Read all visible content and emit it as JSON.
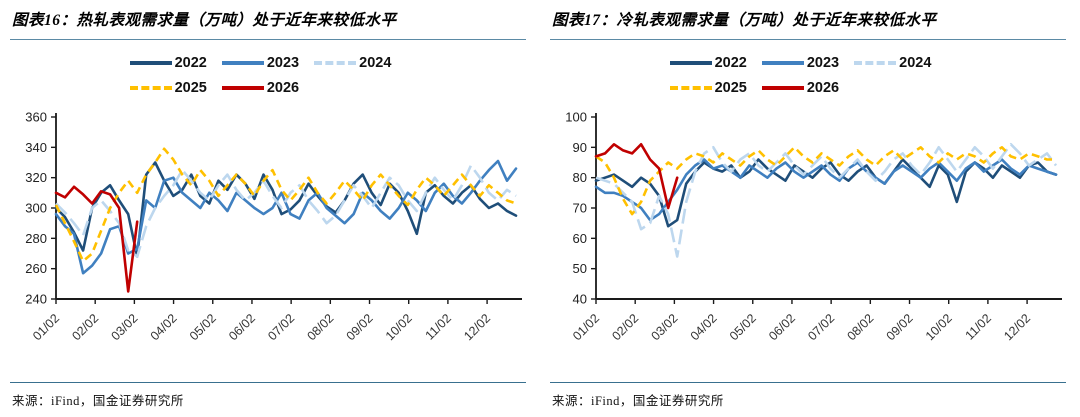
{
  "colors": {
    "title_rule": "#5b8aa5",
    "source_rule": "#39708f",
    "axis": "#1a1a1a",
    "series_2022": "#1f4e79",
    "series_2023": "#4080c0",
    "series_2024": "#bdd7ee",
    "series_2025": "#ffc000",
    "series_2026": "#c00000"
  },
  "panels": [
    {
      "title": "图表16：热轧表观需求量（万吨）处于近年来较低水平",
      "source": "来源：iFind，国金证券研究所"
    },
    {
      "title": "图表17：冷轧表观需求量（万吨）处于近年来较低水平",
      "source": "来源：iFind，国金证券研究所"
    }
  ],
  "chart_data": [
    {
      "type": "line",
      "title": "热轧表观需求量（万吨）",
      "ylim": [
        240,
        360
      ],
      "ytick_step": 20,
      "n_points": 52,
      "grid": false,
      "legend_position": "top",
      "x_tick_labels": [
        "01/02",
        "02/02",
        "03/02",
        "04/02",
        "05/02",
        "06/02",
        "07/02",
        "08/02",
        "09/02",
        "10/02",
        "11/02",
        "12/02"
      ],
      "series": [
        {
          "name": "2022",
          "color": "#1f4e79",
          "dash": "none",
          "values": [
            300,
            294,
            284,
            272,
            300,
            310,
            315,
            305,
            296,
            268,
            322,
            330,
            318,
            308,
            312,
            322,
            308,
            303,
            318,
            312,
            322,
            316,
            306,
            322,
            312,
            296,
            299,
            305,
            316,
            308,
            301,
            297,
            305,
            316,
            322,
            310,
            302,
            316,
            310,
            298,
            283,
            310,
            315,
            308,
            303,
            310,
            315,
            306,
            300,
            303,
            298,
            295
          ]
        },
        {
          "name": "2023",
          "color": "#4080c0",
          "dash": "none",
          "values": [
            296,
            288,
            283,
            257,
            262,
            270,
            286,
            288,
            270,
            273,
            305,
            300,
            318,
            320,
            310,
            305,
            300,
            310,
            305,
            298,
            310,
            305,
            300,
            296,
            300,
            310,
            296,
            293,
            305,
            310,
            300,
            295,
            290,
            296,
            310,
            305,
            298,
            293,
            300,
            310,
            305,
            298,
            310,
            316,
            308,
            303,
            310,
            318,
            325,
            331,
            318,
            326
          ]
        },
        {
          "name": "2024",
          "color": "#bdd7ee",
          "dash": "long",
          "values": [
            303,
            297,
            290,
            282,
            300,
            305,
            298,
            290,
            272,
            268,
            288,
            300,
            308,
            315,
            325,
            318,
            310,
            305,
            315,
            322,
            312,
            305,
            310,
            318,
            308,
            300,
            310,
            315,
            305,
            298,
            290,
            295,
            305,
            315,
            308,
            300,
            310,
            320,
            315,
            305,
            298,
            310,
            320,
            312,
            305,
            315,
            328,
            320,
            310,
            305,
            312,
            308
          ]
        },
        {
          "name": "2025",
          "color": "#ffc000",
          "dash": "dash",
          "values": [
            302,
            290,
            278,
            265,
            270,
            285,
            300,
            310,
            318,
            310,
            322,
            330,
            339,
            332,
            322,
            315,
            325,
            318,
            308,
            315,
            322,
            316,
            308,
            318,
            325,
            312,
            305,
            312,
            320,
            310,
            303,
            310,
            318,
            312,
            305,
            315,
            322,
            315,
            308,
            302,
            312,
            320,
            315,
            308,
            315,
            322,
            315,
            308,
            315,
            310,
            305,
            303
          ]
        },
        {
          "name": "2026",
          "color": "#c00000",
          "dash": "none",
          "values": [
            310,
            307,
            314,
            309,
            303,
            311,
            309,
            300,
            245,
            291
          ]
        }
      ]
    },
    {
      "type": "line",
      "title": "冷轧表观需求量（万吨）",
      "ylim": [
        40,
        100
      ],
      "ytick_step": 10,
      "n_points": 52,
      "grid": false,
      "legend_position": "top",
      "x_tick_labels": [
        "01/02",
        "02/02",
        "03/02",
        "04/02",
        "05/02",
        "06/02",
        "07/02",
        "08/02",
        "09/02",
        "10/02",
        "11/02",
        "12/02"
      ],
      "series": [
        {
          "name": "2022",
          "color": "#1f4e79",
          "dash": "none",
          "values": [
            79,
            80,
            81,
            79,
            77,
            80,
            78,
            74,
            64,
            66,
            78,
            82,
            85,
            83,
            82,
            84,
            80,
            82,
            86,
            83,
            81,
            79,
            84,
            82,
            80,
            83,
            85,
            81,
            79,
            82,
            84,
            80,
            78,
            82,
            86,
            83,
            80,
            77,
            84,
            81,
            72,
            82,
            85,
            83,
            80,
            84,
            82,
            80,
            84,
            85,
            82,
            81
          ]
        },
        {
          "name": "2023",
          "color": "#4080c0",
          "dash": "none",
          "values": [
            77,
            75,
            75,
            74,
            72,
            70,
            66,
            68,
            72,
            76,
            81,
            84,
            86,
            83,
            84,
            82,
            80,
            84,
            82,
            80,
            83,
            85,
            82,
            80,
            82,
            84,
            81,
            79,
            83,
            85,
            82,
            80,
            78,
            82,
            84,
            82,
            80,
            83,
            85,
            82,
            79,
            83,
            85,
            82,
            84,
            86,
            83,
            81,
            84,
            83,
            82,
            81
          ]
        },
        {
          "name": "2024",
          "color": "#bdd7ee",
          "dash": "long",
          "values": [
            80,
            79,
            78,
            75,
            72,
            63,
            65,
            74,
            68,
            54,
            72,
            82,
            88,
            90,
            85,
            82,
            86,
            88,
            84,
            82,
            85,
            88,
            84,
            81,
            84,
            87,
            83,
            80,
            83,
            86,
            82,
            79,
            82,
            86,
            88,
            84,
            81,
            85,
            90,
            86,
            82,
            86,
            90,
            87,
            83,
            87,
            91,
            88,
            84,
            86,
            88,
            84
          ]
        },
        {
          "name": "2025",
          "color": "#ffc000",
          "dash": "dash",
          "values": [
            87,
            85,
            80,
            73,
            68,
            72,
            79,
            82,
            85,
            83,
            86,
            88,
            87,
            85,
            88,
            86,
            84,
            87,
            89,
            86,
            84,
            87,
            90,
            87,
            85,
            88,
            86,
            84,
            87,
            89,
            86,
            84,
            87,
            89,
            86,
            88,
            90,
            87,
            85,
            88,
            86,
            88,
            87,
            85,
            88,
            90,
            87,
            86,
            88,
            87,
            86,
            86
          ]
        },
        {
          "name": "2026",
          "color": "#c00000",
          "dash": "none",
          "values": [
            87,
            88,
            91,
            89,
            88,
            91,
            86,
            83,
            70,
            80
          ]
        }
      ]
    }
  ]
}
